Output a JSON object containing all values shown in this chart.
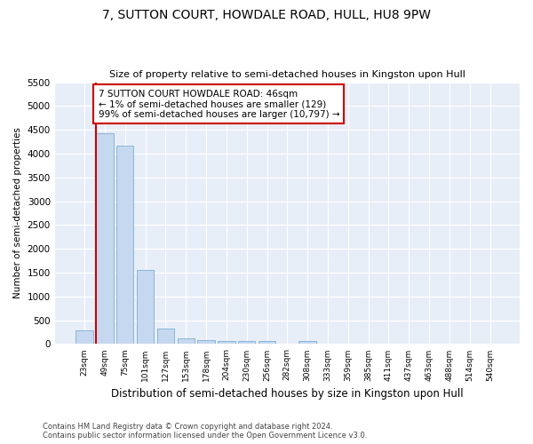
{
  "title": "7, SUTTON COURT, HOWDALE ROAD, HULL, HU8 9PW",
  "subtitle": "Size of property relative to semi-detached houses in Kingston upon Hull",
  "xlabel": "Distribution of semi-detached houses by size in Kingston upon Hull",
  "ylabel": "Number of semi-detached properties",
  "footnote": "Contains HM Land Registry data © Crown copyright and database right 2024.\nContains public sector information licensed under the Open Government Licence v3.0.",
  "bar_labels": [
    "23sqm",
    "49sqm",
    "75sqm",
    "101sqm",
    "127sqm",
    "153sqm",
    "178sqm",
    "204sqm",
    "230sqm",
    "256sqm",
    "282sqm",
    "308sqm",
    "333sqm",
    "359sqm",
    "385sqm",
    "411sqm",
    "437sqm",
    "463sqm",
    "488sqm",
    "514sqm",
    "540sqm"
  ],
  "bar_values": [
    280,
    4430,
    4160,
    1560,
    320,
    120,
    80,
    65,
    60,
    60,
    0,
    65,
    0,
    0,
    0,
    0,
    0,
    0,
    0,
    0,
    0
  ],
  "bar_color": "#c5d8ef",
  "bar_edge_color": "#7aafd4",
  "annotation_box_text": "7 SUTTON COURT HOWDALE ROAD: 46sqm\n← 1% of semi-detached houses are smaller (129)\n99% of semi-detached houses are larger (10,797) →",
  "annotation_color": "#cc0000",
  "ylim": [
    0,
    5500
  ],
  "yticks": [
    0,
    500,
    1000,
    1500,
    2000,
    2500,
    3000,
    3500,
    4000,
    4500,
    5000,
    5500
  ],
  "bg_color": "#e8eef8",
  "grid_color": "#ffffff"
}
